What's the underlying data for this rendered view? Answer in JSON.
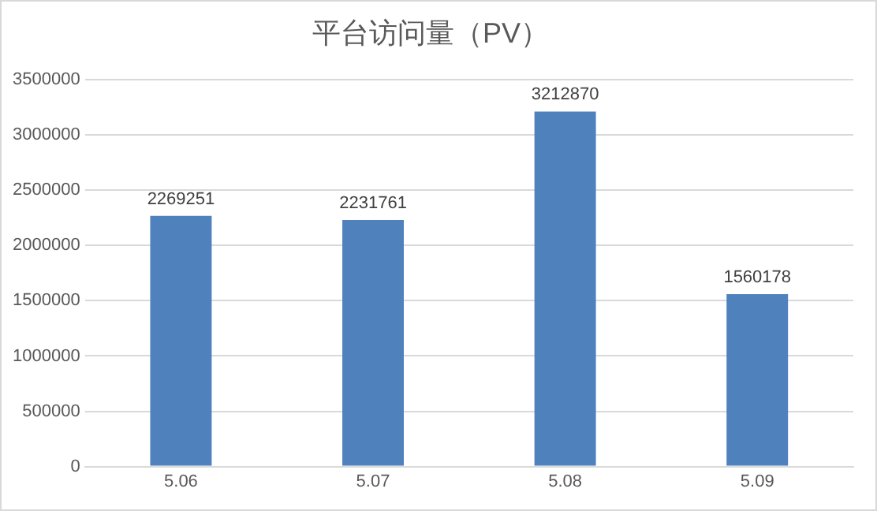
{
  "chart_data": {
    "type": "bar",
    "title": "平台访问量（PV）",
    "categories": [
      "5.06",
      "5.07",
      "5.08",
      "5.09"
    ],
    "values": [
      2269251,
      2231761,
      3212870,
      1560178
    ],
    "color": "#4f81bd",
    "ylim": [
      0,
      3500000
    ],
    "yticks": [
      0,
      500000,
      1000000,
      1500000,
      2000000,
      2500000,
      3000000,
      3500000
    ],
    "grid": "y",
    "data_labels": true,
    "legend": false
  }
}
